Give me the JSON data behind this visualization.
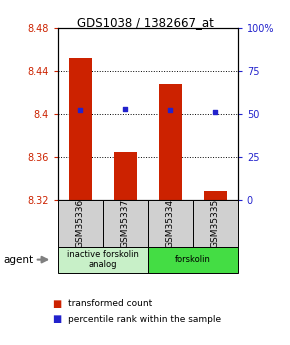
{
  "title": "GDS1038 / 1382667_at",
  "samples": [
    "GSM35336",
    "GSM35337",
    "GSM35334",
    "GSM35335"
  ],
  "bar_values": [
    8.452,
    8.365,
    8.428,
    8.328
  ],
  "bar_bottom": 8.32,
  "percentile_values": [
    52,
    53,
    52,
    51
  ],
  "bar_color": "#cc2200",
  "pct_color": "#2222cc",
  "ylim_left": [
    8.32,
    8.48
  ],
  "ylim_right": [
    0,
    100
  ],
  "yticks_left": [
    8.32,
    8.36,
    8.4,
    8.44,
    8.48
  ],
  "yticks_right": [
    0,
    25,
    50,
    75,
    100
  ],
  "ytick_labels_right": [
    "0",
    "25",
    "50",
    "75",
    "100%"
  ],
  "gridlines": [
    8.36,
    8.4,
    8.44
  ],
  "agent_label": "agent",
  "groups": [
    {
      "label": "inactive forskolin\nanalog",
      "indices": [
        0,
        1
      ],
      "color": "#c8f0c8"
    },
    {
      "label": "forskolin",
      "indices": [
        2,
        3
      ],
      "color": "#44dd44"
    }
  ],
  "legend_items": [
    {
      "color": "#cc2200",
      "label": "transformed count"
    },
    {
      "color": "#2222cc",
      "label": "percentile rank within the sample"
    }
  ],
  "bg_color": "#ffffff",
  "plot_bg": "#ffffff",
  "sample_box_color": "#d0d0d0"
}
